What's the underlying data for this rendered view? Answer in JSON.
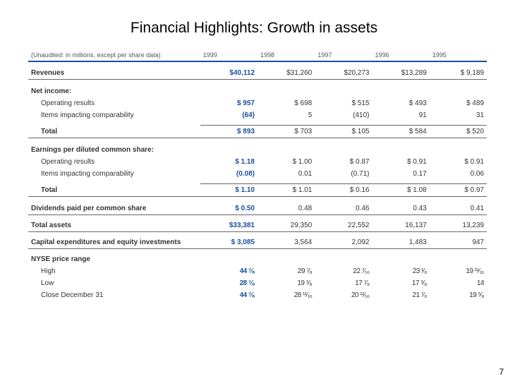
{
  "title": "Financial Highlights: Growth in assets",
  "subheader": "(Unaudited: in millions, except per share data)",
  "years": [
    "1999",
    "1998",
    "1997",
    "1996",
    "1995"
  ],
  "rows": {
    "revenues": {
      "label": "Revenues",
      "vals": [
        "$40,112",
        "$31,260",
        "$20,273",
        "$13,289",
        "$ 9,189"
      ]
    },
    "netincome_header": "Net income:",
    "op_results": {
      "label": "Operating results",
      "vals": [
        "$     957",
        "$    698",
        "$    515",
        "$    493",
        "$    489"
      ]
    },
    "items_comp": {
      "label": "Items impacting comparability",
      "vals": [
        "(64)",
        "5",
        "(410)",
        "91",
        "31"
      ]
    },
    "total_ni": {
      "label": "Total",
      "vals": [
        "$     893",
        "$    703",
        "$    105",
        "$    584",
        "$    520"
      ]
    },
    "eps_header": "Earnings per diluted common share:",
    "eps_op": {
      "label": "Operating results",
      "vals": [
        "$    1.18",
        "$   1.00",
        "$   0.87",
        "$   0.91",
        "$   0.91"
      ]
    },
    "eps_items": {
      "label": "Items impacting comparability",
      "vals": [
        "(0.08)",
        "0.01",
        "(0.71)",
        "0.17",
        "0.06"
      ]
    },
    "eps_total": {
      "label": "Total",
      "vals": [
        "$    1.10",
        "$   1.01",
        "$   0.16",
        "$   1.08",
        "$   0.97"
      ]
    },
    "dividends": {
      "label": "Dividends paid per common share",
      "vals": [
        "$    0.50",
        "0.48",
        "0.46",
        "0.43",
        "0.41"
      ]
    },
    "assets": {
      "label": "Total assets",
      "vals": [
        "$33,381",
        "29,350",
        "22,552",
        "16,137",
        "13,239"
      ]
    },
    "capex": {
      "label": "Capital expenditures and equity investments",
      "vals": [
        "$  3,085",
        "3,564",
        "2,092",
        "1,483",
        "947"
      ]
    },
    "nyse_header": "NYSE price range",
    "nyse_high": {
      "label": "High",
      "vals": [
        "44 ⁷⁄₈",
        "29 ⁷⁄₈",
        "22 ⁷⁄₁₆",
        "23 ¹⁄₈",
        "19 ¹¹⁄₁₆"
      ]
    },
    "nyse_low": {
      "label": "Low",
      "vals": [
        "28 ⁷⁄₈",
        "19 ⁵⁄₈",
        "17 ⁷⁄₈",
        "17 ⁵⁄₈",
        "14"
      ]
    },
    "nyse_close": {
      "label": "Close December 31",
      "vals": [
        "44 ⁷⁄₈",
        "28 ¹¹⁄₁₆",
        "20 ¹¹⁄₁₆",
        "21 ⁷⁄₈",
        "19 ⁵⁄₈"
      ]
    }
  },
  "page_number": "7",
  "colors": {
    "accent": "#1a4fa0",
    "text": "#333333"
  }
}
